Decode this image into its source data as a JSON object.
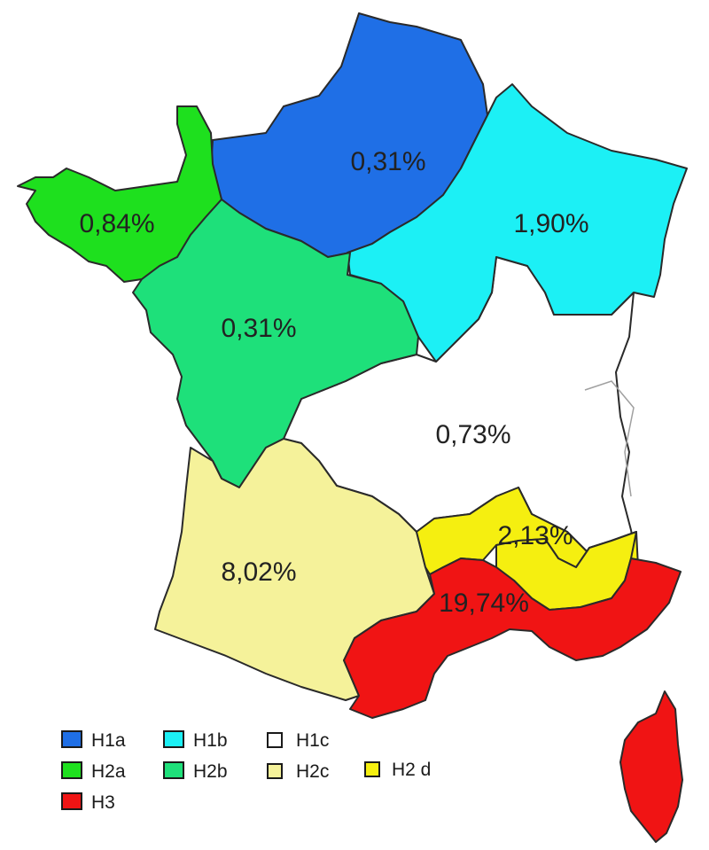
{
  "regions": {
    "h1a": {
      "color": "#1f6fe6",
      "value": "0,31%"
    },
    "h1b": {
      "color": "#1cf0f5",
      "value": "1,90%"
    },
    "h1c": {
      "color": "#ffffff",
      "value": "0,73%"
    },
    "h2a": {
      "color": "#1ee01e",
      "value": "0,84%"
    },
    "h2b": {
      "color": "#1ee07a",
      "value": "0,31%"
    },
    "h2c": {
      "color": "#f5f29a",
      "value": "8,02%"
    },
    "h2d": {
      "color": "#f5ef10",
      "value": "2,13%"
    },
    "h3": {
      "color": "#f01414",
      "value": "19,74%"
    }
  },
  "legend": [
    {
      "label": "H1a",
      "color": "#1f6fe6"
    },
    {
      "label": "H1b",
      "color": "#1cf0f5"
    },
    {
      "label": "H1c",
      "color": "#ffffff"
    },
    {
      "label": "H2a",
      "color": "#1ee01e"
    },
    {
      "label": "H2b",
      "color": "#1ee07a"
    },
    {
      "label": "H2c",
      "color": "#f5f29a"
    },
    {
      "label": "H2 d",
      "color": "#f5ef10"
    },
    {
      "label": "H3",
      "color": "#f01414"
    }
  ]
}
